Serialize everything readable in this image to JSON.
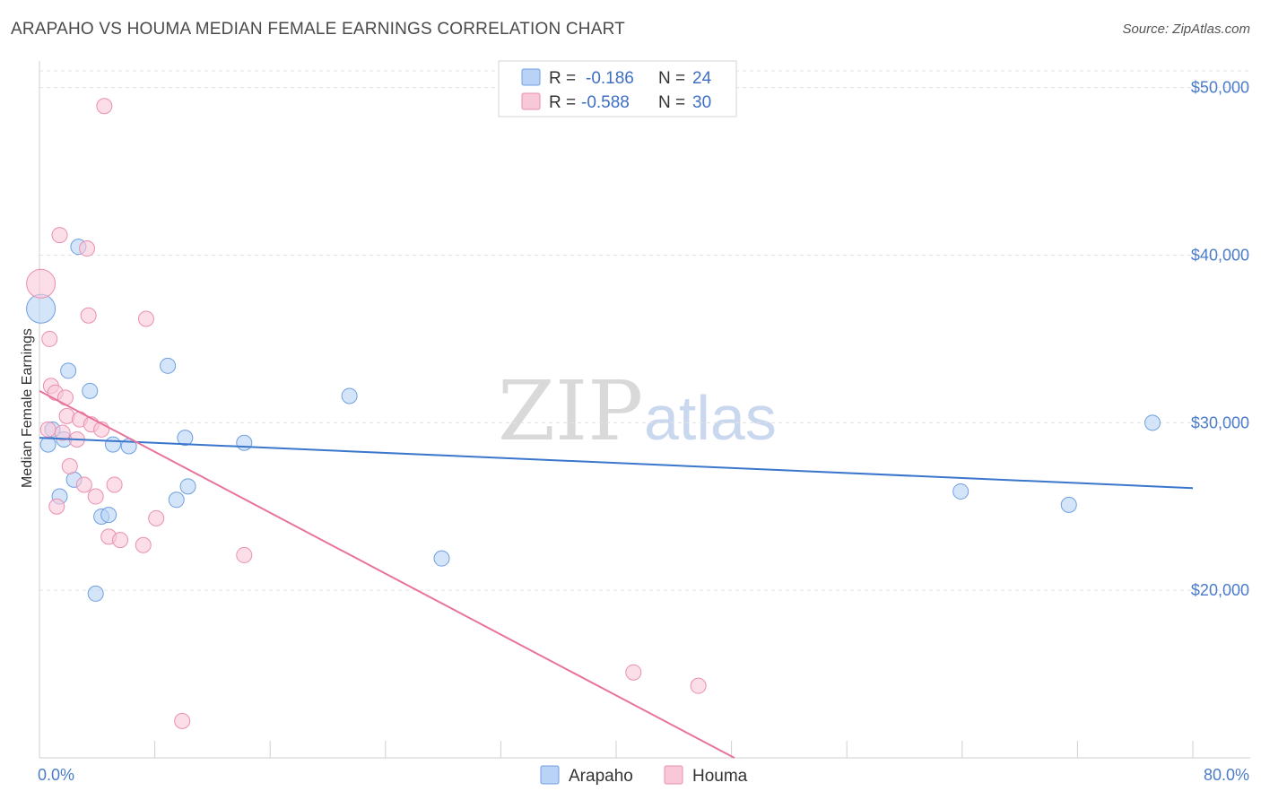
{
  "title": "ARAPAHO VS HOUMA MEDIAN FEMALE EARNINGS CORRELATION CHART",
  "source": "Source: ZipAtlas.com",
  "watermark": {
    "zip": "ZIP",
    "atlas": "atlas"
  },
  "legend": {
    "rows": [
      {
        "r_label": "R =",
        "r_value": "-0.186",
        "n_label": "N =",
        "n_value": "24",
        "color": "#b8d3f5",
        "stroke": "#6f9fe0"
      },
      {
        "r_label": "R =",
        "r_value": "-0.588",
        "n_label": "N =",
        "n_value": "30",
        "color": "#f8c8d8",
        "stroke": "#ea8fb0"
      }
    ]
  },
  "bottom_legend": [
    {
      "label": "Arapaho",
      "color": "#b8d3f5",
      "stroke": "#6f9fe0"
    },
    {
      "label": "Houma",
      "color": "#f8c8d8",
      "stroke": "#ea8fb0"
    }
  ],
  "chart_data": {
    "type": "scatter",
    "title": "ARAPAHO VS HOUMA MEDIAN FEMALE EARNINGS CORRELATION CHART",
    "xlabel": "",
    "ylabel": "Median Female Earnings",
    "xlim": [
      0,
      80
    ],
    "ylim": [
      10000,
      51000
    ],
    "x_tick_labels": [
      {
        "value": 0,
        "label": "0.0%"
      },
      {
        "value": 80,
        "label": "80.0%"
      }
    ],
    "y_ticks": [
      {
        "value": 20000,
        "label": "$20,000"
      },
      {
        "value": 30000,
        "label": "$30,000"
      },
      {
        "value": 40000,
        "label": "$40,000"
      },
      {
        "value": 50000,
        "label": "$50,000"
      }
    ],
    "series": [
      {
        "name": "Arapaho",
        "fill": "#b8d3f5",
        "stroke": "#6f9fe0",
        "line_color": "#3a76cc",
        "trend": {
          "x0": 0,
          "y0": 29100,
          "x1": 80,
          "y1": 26100
        },
        "points": [
          {
            "x": 0.1,
            "y": 36800,
            "big": true
          },
          {
            "x": 0.6,
            "y": 28700
          },
          {
            "x": 0.9,
            "y": 29600
          },
          {
            "x": 1.4,
            "y": 25600
          },
          {
            "x": 1.7,
            "y": 29000
          },
          {
            "x": 2.0,
            "y": 33100
          },
          {
            "x": 2.4,
            "y": 26600
          },
          {
            "x": 2.7,
            "y": 40500
          },
          {
            "x": 3.5,
            "y": 31900
          },
          {
            "x": 3.9,
            "y": 19800
          },
          {
            "x": 4.3,
            "y": 24400
          },
          {
            "x": 4.8,
            "y": 24500
          },
          {
            "x": 5.1,
            "y": 28700
          },
          {
            "x": 6.2,
            "y": 28600
          },
          {
            "x": 8.9,
            "y": 33400
          },
          {
            "x": 9.5,
            "y": 25400
          },
          {
            "x": 10.1,
            "y": 29100
          },
          {
            "x": 10.3,
            "y": 26200
          },
          {
            "x": 14.2,
            "y": 28800
          },
          {
            "x": 21.5,
            "y": 31600
          },
          {
            "x": 27.9,
            "y": 21900
          },
          {
            "x": 63.9,
            "y": 25900
          },
          {
            "x": 71.4,
            "y": 25100
          },
          {
            "x": 77.2,
            "y": 30000
          }
        ]
      },
      {
        "name": "Houma",
        "fill": "#f8c8d8",
        "stroke": "#ea8fb0",
        "line_color": "#e8739c",
        "trend": {
          "x0": 0,
          "y0": 31900,
          "x1": 48.2,
          "y1": 10000
        },
        "points": [
          {
            "x": 0.1,
            "y": 38300,
            "big": true
          },
          {
            "x": 0.6,
            "y": 29600
          },
          {
            "x": 0.7,
            "y": 35000
          },
          {
            "x": 0.8,
            "y": 32200
          },
          {
            "x": 1.1,
            "y": 31800
          },
          {
            "x": 1.2,
            "y": 25000
          },
          {
            "x": 1.4,
            "y": 41200
          },
          {
            "x": 1.6,
            "y": 29400
          },
          {
            "x": 1.8,
            "y": 31500
          },
          {
            "x": 1.9,
            "y": 30400
          },
          {
            "x": 2.1,
            "y": 27400
          },
          {
            "x": 2.6,
            "y": 29000
          },
          {
            "x": 2.8,
            "y": 30200
          },
          {
            "x": 3.1,
            "y": 26300
          },
          {
            "x": 3.3,
            "y": 40400
          },
          {
            "x": 3.4,
            "y": 36400
          },
          {
            "x": 3.6,
            "y": 29900
          },
          {
            "x": 3.9,
            "y": 25600
          },
          {
            "x": 4.3,
            "y": 29600
          },
          {
            "x": 4.5,
            "y": 48900
          },
          {
            "x": 4.8,
            "y": 23200
          },
          {
            "x": 5.2,
            "y": 26300
          },
          {
            "x": 5.6,
            "y": 23000
          },
          {
            "x": 7.2,
            "y": 22700
          },
          {
            "x": 7.4,
            "y": 36200
          },
          {
            "x": 8.1,
            "y": 24300
          },
          {
            "x": 9.9,
            "y": 12200
          },
          {
            "x": 14.2,
            "y": 22100
          },
          {
            "x": 41.2,
            "y": 15100
          },
          {
            "x": 45.7,
            "y": 14300
          }
        ]
      }
    ]
  }
}
